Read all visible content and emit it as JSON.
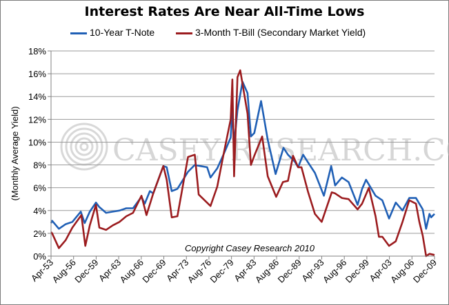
{
  "chart_data": {
    "type": "line",
    "title": "Interest Rates Are Near All-Time Lows",
    "ylabel": "(Monthly Average Yield)",
    "xlabel": "",
    "ylim": [
      0,
      18
    ],
    "y_ticks": [
      "0%",
      "2%",
      "4%",
      "6%",
      "8%",
      "10%",
      "12%",
      "14%",
      "16%",
      "18%"
    ],
    "x_ticks": [
      "Apr-53",
      "Aug-56",
      "Dec-59",
      "Apr-63",
      "Aug-66",
      "Dec-69",
      "Apr-73",
      "Aug-76",
      "Dec-79",
      "Apr-83",
      "Aug-86",
      "Dec-89",
      "Apr-93",
      "Aug-96",
      "Dec-99",
      "Apr-03",
      "Aug-06",
      "Dec-09"
    ],
    "grid": "horizontal",
    "legend_position": "top",
    "annotation": "Copyright Casey Research 2010",
    "watermark": "CASEY RESEARCH.COM",
    "x_range": [
      "1953-04",
      "2010-03"
    ],
    "series": [
      {
        "name": "10-Year T-Note",
        "color": "#1f5fb5",
        "points": [
          [
            "1953-04",
            2.9
          ],
          [
            "1953-06",
            3.1
          ],
          [
            "1954-06",
            2.4
          ],
          [
            "1955-06",
            2.8
          ],
          [
            "1956-06",
            3.0
          ],
          [
            "1957-09",
            3.9
          ],
          [
            "1958-04",
            2.9
          ],
          [
            "1959-01",
            3.9
          ],
          [
            "1959-12",
            4.7
          ],
          [
            "1960-06",
            4.3
          ],
          [
            "1961-06",
            3.8
          ],
          [
            "1962-06",
            3.9
          ],
          [
            "1963-06",
            4.0
          ],
          [
            "1964-06",
            4.2
          ],
          [
            "1965-06",
            4.2
          ],
          [
            "1966-09",
            5.2
          ],
          [
            "1967-03",
            4.6
          ],
          [
            "1967-12",
            5.7
          ],
          [
            "1968-06",
            5.5
          ],
          [
            "1969-12",
            7.9
          ],
          [
            "1970-06",
            7.8
          ],
          [
            "1971-03",
            5.7
          ],
          [
            "1972-01",
            5.9
          ],
          [
            "1973-08",
            7.4
          ],
          [
            "1974-08",
            8.0
          ],
          [
            "1975-06",
            7.9
          ],
          [
            "1976-06",
            7.8
          ],
          [
            "1976-12",
            6.9
          ],
          [
            "1977-12",
            7.7
          ],
          [
            "1978-12",
            9.0
          ],
          [
            "1979-12",
            10.4
          ],
          [
            "1980-03",
            12.8
          ],
          [
            "1980-06",
            9.8
          ],
          [
            "1980-12",
            12.8
          ],
          [
            "1981-09",
            15.3
          ],
          [
            "1982-06",
            14.3
          ],
          [
            "1982-12",
            10.5
          ],
          [
            "1983-06",
            10.8
          ],
          [
            "1984-06",
            13.6
          ],
          [
            "1985-06",
            10.2
          ],
          [
            "1986-08",
            7.2
          ],
          [
            "1987-10",
            9.5
          ],
          [
            "1988-06",
            8.9
          ],
          [
            "1989-06",
            8.3
          ],
          [
            "1989-12",
            7.8
          ],
          [
            "1990-09",
            8.9
          ],
          [
            "1991-06",
            8.2
          ],
          [
            "1992-06",
            7.3
          ],
          [
            "1993-10",
            5.3
          ],
          [
            "1994-11",
            7.9
          ],
          [
            "1995-06",
            6.2
          ],
          [
            "1996-06",
            6.9
          ],
          [
            "1997-06",
            6.5
          ],
          [
            "1998-10",
            4.5
          ],
          [
            "1999-06",
            5.9
          ],
          [
            "2000-01",
            6.7
          ],
          [
            "2001-06",
            5.3
          ],
          [
            "2002-06",
            4.9
          ],
          [
            "2003-06",
            3.3
          ],
          [
            "2004-06",
            4.7
          ],
          [
            "2005-06",
            4.0
          ],
          [
            "2006-06",
            5.1
          ],
          [
            "2007-06",
            5.1
          ],
          [
            "2008-06",
            4.1
          ],
          [
            "2008-12",
            2.4
          ],
          [
            "2009-06",
            3.7
          ],
          [
            "2009-09",
            3.4
          ],
          [
            "2010-03",
            3.7
          ]
        ]
      },
      {
        "name": "3-Month T-Bill (Secondary Market Yield)",
        "color": "#9b1b1e",
        "points": [
          [
            "1953-04",
            2.1
          ],
          [
            "1953-06",
            2.0
          ],
          [
            "1954-06",
            0.7
          ],
          [
            "1955-06",
            1.4
          ],
          [
            "1956-06",
            2.5
          ],
          [
            "1957-10",
            3.6
          ],
          [
            "1958-05",
            0.9
          ],
          [
            "1959-01",
            2.7
          ],
          [
            "1959-12",
            4.5
          ],
          [
            "1960-06",
            2.5
          ],
          [
            "1961-06",
            2.3
          ],
          [
            "1962-06",
            2.7
          ],
          [
            "1963-06",
            3.0
          ],
          [
            "1964-06",
            3.5
          ],
          [
            "1965-06",
            3.8
          ],
          [
            "1966-09",
            5.3
          ],
          [
            "1967-06",
            3.6
          ],
          [
            "1968-06",
            5.5
          ],
          [
            "1969-12",
            7.9
          ],
          [
            "1970-06",
            6.7
          ],
          [
            "1971-03",
            3.4
          ],
          [
            "1972-01",
            3.5
          ],
          [
            "1973-08",
            8.7
          ],
          [
            "1974-08",
            8.9
          ],
          [
            "1975-03",
            5.4
          ],
          [
            "1976-12",
            4.4
          ],
          [
            "1977-12",
            6.1
          ],
          [
            "1978-12",
            9.1
          ],
          [
            "1979-12",
            12.0
          ],
          [
            "1980-03",
            15.5
          ],
          [
            "1980-06",
            7.0
          ],
          [
            "1980-12",
            15.7
          ],
          [
            "1981-05",
            16.3
          ],
          [
            "1982-06",
            12.5
          ],
          [
            "1982-12",
            8.0
          ],
          [
            "1983-06",
            8.8
          ],
          [
            "1984-08",
            10.5
          ],
          [
            "1985-06",
            7.0
          ],
          [
            "1986-09",
            5.2
          ],
          [
            "1987-09",
            6.5
          ],
          [
            "1988-06",
            6.6
          ],
          [
            "1989-03",
            8.8
          ],
          [
            "1989-12",
            7.8
          ],
          [
            "1990-06",
            7.8
          ],
          [
            "1991-06",
            5.6
          ],
          [
            "1992-06",
            3.7
          ],
          [
            "1993-06",
            3.0
          ],
          [
            "1994-12",
            5.6
          ],
          [
            "1995-06",
            5.5
          ],
          [
            "1996-06",
            5.1
          ],
          [
            "1997-06",
            5.0
          ],
          [
            "1998-10",
            4.1
          ],
          [
            "1999-06",
            4.6
          ],
          [
            "2000-06",
            6.0
          ],
          [
            "2001-06",
            3.5
          ],
          [
            "2001-12",
            1.7
          ],
          [
            "2002-06",
            1.7
          ],
          [
            "2003-06",
            0.9
          ],
          [
            "2004-06",
            1.3
          ],
          [
            "2005-06",
            3.0
          ],
          [
            "2006-06",
            4.9
          ],
          [
            "2007-06",
            4.6
          ],
          [
            "2007-12",
            3.0
          ],
          [
            "2008-06",
            1.8
          ],
          [
            "2008-12",
            0.0
          ],
          [
            "2009-06",
            0.2
          ],
          [
            "2010-03",
            0.1
          ]
        ]
      }
    ]
  }
}
